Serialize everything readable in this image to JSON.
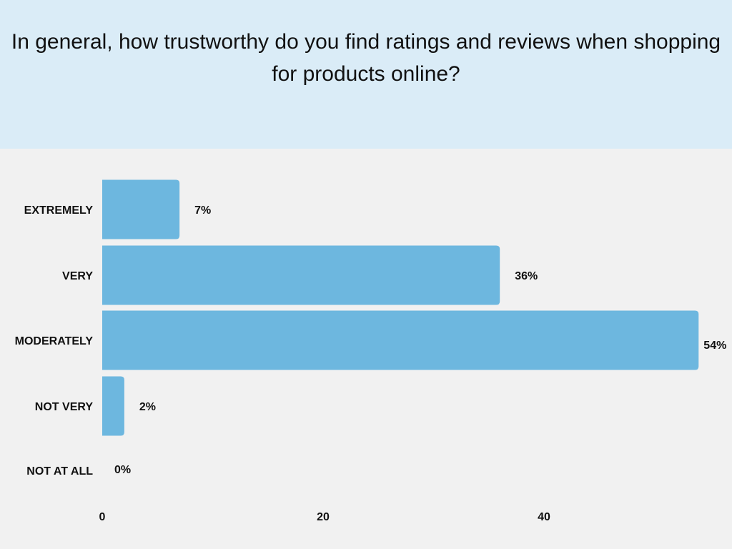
{
  "chart_data": {
    "type": "bar",
    "orientation": "horizontal",
    "title": "In general, how trustworthy do you find ratings and reviews when shopping for products online?",
    "categories": [
      "EXTREMELY",
      "VERY",
      "MODERATELY",
      "NOT VERY",
      "NOT AT ALL"
    ],
    "values": [
      7,
      36,
      54,
      2,
      0
    ],
    "data_labels": [
      "7%",
      "36%",
      "54%",
      "2%",
      "0%"
    ],
    "xticks": [
      "0",
      "20",
      "40"
    ],
    "xtick_values": [
      0,
      20,
      40
    ],
    "xlim": [
      0,
      57
    ],
    "grid": false,
    "bar_color": "#6db7df",
    "header_color": "#daecf7"
  }
}
